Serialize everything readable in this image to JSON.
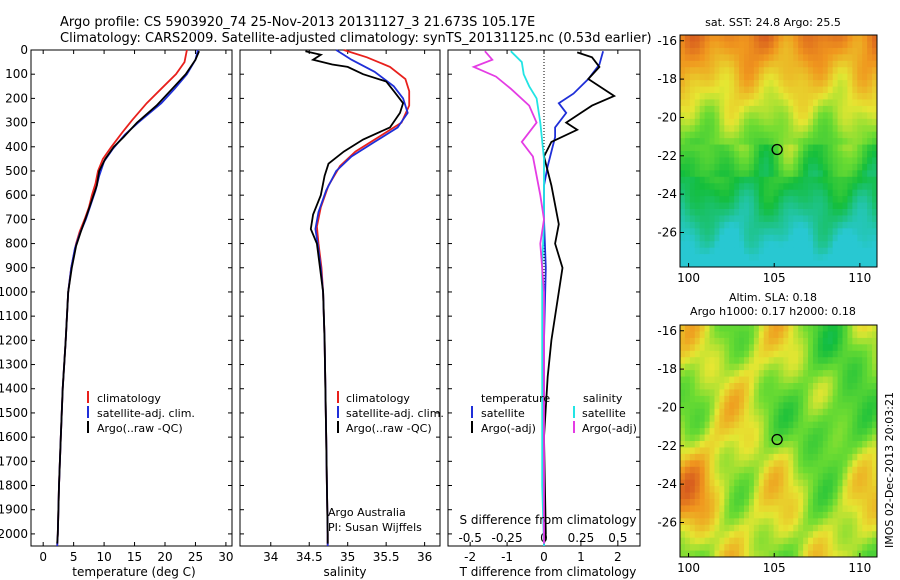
{
  "header": {
    "title_line1": "Argo profile: CS 5903920_74 25-Nov-2013 20131127_3 21.673S 105.17E",
    "title_line2": "Climatology: CARS2009. Satellite-adjusted climatology: synTS_20131125.nc (0.53d earlier)"
  },
  "colors": {
    "climatology": "#e8201c",
    "satellite": "#1f2fd8",
    "argo": "#000000",
    "salinity_satellite": "#22e4e4",
    "salinity_argo": "#e43ce4"
  },
  "chart_data": [
    {
      "type": "line",
      "id": "temperature",
      "xlabel": "temperature (deg C)",
      "xlim": [
        -2,
        31
      ],
      "xticks": [
        0,
        5,
        10,
        15,
        20,
        25,
        30
      ],
      "ylim": [
        0,
        2050
      ],
      "yticks": [
        0,
        100,
        200,
        300,
        400,
        500,
        600,
        700,
        800,
        900,
        1000,
        1100,
        1200,
        1300,
        1400,
        1500,
        1600,
        1700,
        1800,
        1900,
        2000
      ],
      "legend": [
        "climatology",
        "satellite-adj. clim.",
        "Argo(..raw -QC)"
      ],
      "series": [
        {
          "name": "climatology",
          "color_key": "climatology",
          "points": [
            [
              23.6,
              0
            ],
            [
              23.2,
              50
            ],
            [
              21.8,
              100
            ],
            [
              19.4,
              160
            ],
            [
              17.0,
              220
            ],
            [
              14.6,
              290
            ],
            [
              13.0,
              340
            ],
            [
              11.2,
              400
            ],
            [
              9.8,
              450
            ],
            [
              9.0,
              500
            ],
            [
              8.6,
              550
            ],
            [
              8.0,
              600
            ],
            [
              7.5,
              650
            ],
            [
              6.8,
              700
            ],
            [
              6.0,
              750
            ],
            [
              5.4,
              800
            ],
            [
              4.6,
              900
            ],
            [
              4.1,
              1000
            ],
            [
              3.7,
              1200
            ],
            [
              3.2,
              1400
            ],
            [
              2.9,
              1600
            ],
            [
              2.6,
              1800
            ],
            [
              2.4,
              2000
            ],
            [
              2.3,
              2050
            ]
          ]
        },
        {
          "name": "satellite-adj. clim.",
          "color_key": "satellite",
          "points": [
            [
              25.4,
              0
            ],
            [
              25.0,
              40
            ],
            [
              23.6,
              100
            ],
            [
              21.6,
              160
            ],
            [
              19.4,
              220
            ],
            [
              15.6,
              300
            ],
            [
              13.4,
              350
            ],
            [
              11.4,
              410
            ],
            [
              10.0,
              460
            ],
            [
              9.2,
              520
            ],
            [
              8.6,
              580
            ],
            [
              7.8,
              640
            ],
            [
              7.0,
              700
            ],
            [
              6.0,
              760
            ],
            [
              5.2,
              820
            ],
            [
              4.6,
              900
            ],
            [
              4.1,
              1000
            ],
            [
              3.7,
              1200
            ],
            [
              3.2,
              1400
            ],
            [
              2.9,
              1600
            ],
            [
              2.6,
              1800
            ],
            [
              2.4,
              2000
            ],
            [
              2.3,
              2050
            ]
          ]
        },
        {
          "name": "Argo(..raw -QC)",
          "color_key": "argo",
          "points": [
            [
              25.6,
              5
            ],
            [
              25.0,
              40
            ],
            [
              23.4,
              100
            ],
            [
              21.2,
              160
            ],
            [
              18.6,
              230
            ],
            [
              15.4,
              300
            ],
            [
              13.2,
              360
            ],
            [
              11.6,
              400
            ],
            [
              10.2,
              450
            ],
            [
              9.2,
              500
            ],
            [
              8.8,
              560
            ],
            [
              8.0,
              620
            ],
            [
              7.2,
              680
            ],
            [
              6.2,
              750
            ],
            [
              5.4,
              810
            ],
            [
              4.7,
              900
            ],
            [
              4.1,
              1000
            ],
            [
              3.7,
              1200
            ],
            [
              3.2,
              1400
            ],
            [
              2.9,
              1600
            ],
            [
              2.6,
              1800
            ],
            [
              2.4,
              2000
            ],
            [
              2.3,
              2040
            ]
          ]
        }
      ]
    },
    {
      "type": "line",
      "id": "salinity",
      "xlabel": "salinity",
      "xlim": [
        33.6,
        36.2
      ],
      "xticks": [
        34,
        34.5,
        35,
        35.5,
        36
      ],
      "ylim": [
        0,
        2050
      ],
      "legend": [
        "climatology",
        "satellite-adj. clim.",
        "Argo(..raw -QC)"
      ],
      "credit": [
        "Argo Australia",
        "PI: Susan Wijffels"
      ],
      "series": [
        {
          "name": "climatology",
          "color_key": "climatology",
          "points": [
            [
              34.95,
              0
            ],
            [
              35.25,
              30
            ],
            [
              35.55,
              70
            ],
            [
              35.75,
              120
            ],
            [
              35.8,
              170
            ],
            [
              35.8,
              230
            ],
            [
              35.7,
              300
            ],
            [
              35.4,
              360
            ],
            [
              35.1,
              420
            ],
            [
              34.9,
              480
            ],
            [
              34.75,
              560
            ],
            [
              34.65,
              650
            ],
            [
              34.6,
              730
            ],
            [
              34.62,
              800
            ],
            [
              34.66,
              900
            ],
            [
              34.68,
              1000
            ],
            [
              34.7,
              1200
            ],
            [
              34.71,
              1400
            ],
            [
              34.72,
              1600
            ],
            [
              34.73,
              1800
            ],
            [
              34.74,
              2000
            ],
            [
              34.74,
              2050
            ]
          ]
        },
        {
          "name": "satellite-adj. clim.",
          "color_key": "satellite",
          "points": [
            [
              34.85,
              0
            ],
            [
              35.05,
              40
            ],
            [
              35.35,
              90
            ],
            [
              35.6,
              150
            ],
            [
              35.72,
              200
            ],
            [
              35.78,
              260
            ],
            [
              35.65,
              320
            ],
            [
              35.35,
              380
            ],
            [
              35.05,
              440
            ],
            [
              34.85,
              500
            ],
            [
              34.72,
              580
            ],
            [
              34.62,
              670
            ],
            [
              34.58,
              740
            ],
            [
              34.61,
              800
            ],
            [
              34.65,
              900
            ],
            [
              34.68,
              1000
            ],
            [
              34.7,
              1200
            ],
            [
              34.71,
              1400
            ],
            [
              34.72,
              1600
            ],
            [
              34.73,
              1800
            ],
            [
              34.74,
              2000
            ],
            [
              34.74,
              2050
            ]
          ]
        },
        {
          "name": "Argo(..raw -QC)",
          "color_key": "argo",
          "points": [
            [
              34.45,
              5
            ],
            [
              34.65,
              20
            ],
            [
              34.55,
              40
            ],
            [
              34.8,
              60
            ],
            [
              35.0,
              70
            ],
            [
              35.2,
              100
            ],
            [
              35.5,
              130
            ],
            [
              35.6,
              170
            ],
            [
              35.72,
              220
            ],
            [
              35.68,
              260
            ],
            [
              35.55,
              320
            ],
            [
              35.2,
              370
            ],
            [
              34.95,
              420
            ],
            [
              34.75,
              470
            ],
            [
              34.7,
              520
            ],
            [
              34.65,
              600
            ],
            [
              34.55,
              680
            ],
            [
              34.52,
              740
            ],
            [
              34.6,
              800
            ],
            [
              34.64,
              900
            ],
            [
              34.68,
              1000
            ],
            [
              34.7,
              1200
            ],
            [
              34.71,
              1400
            ],
            [
              34.72,
              1600
            ],
            [
              34.73,
              1800
            ],
            [
              34.74,
              2000
            ],
            [
              34.74,
              2040
            ]
          ]
        }
      ]
    },
    {
      "type": "line",
      "id": "difference",
      "xlabel": "T difference from climatology",
      "xlabel_top": "S difference from climatology",
      "xlim": [
        -2.6,
        2.6
      ],
      "xticks": [
        -2,
        -1,
        0,
        1,
        2
      ],
      "xticks_top": [
        -0.5,
        -0.25,
        0,
        0.25,
        0.5
      ],
      "ylim": [
        0,
        2050
      ],
      "legend_temperature_title": "temperature",
      "legend_salinity_title": "salinity",
      "legend_temperature": [
        "satellite",
        "Argo(-adj)"
      ],
      "legend_salinity": [
        "satellite",
        "Argo(-adj)"
      ],
      "series": [
        {
          "name": "temperature satellite",
          "color_key": "satellite",
          "points": [
            [
              1.6,
              5
            ],
            [
              1.5,
              60
            ],
            [
              1.2,
              120
            ],
            [
              0.8,
              180
            ],
            [
              0.4,
              220
            ],
            [
              0.6,
              260
            ],
            [
              0.3,
              320
            ],
            [
              0.3,
              360
            ],
            [
              0.2,
              420
            ],
            [
              0.1,
              480
            ],
            [
              0.0,
              560
            ],
            [
              0.0,
              700
            ],
            [
              0.05,
              900
            ],
            [
              0.0,
              1200
            ],
            [
              0.0,
              1600
            ],
            [
              0.0,
              2000
            ],
            [
              0.0,
              2050
            ]
          ]
        },
        {
          "name": "temperature Argo(-adj)",
          "color_key": "argo",
          "points": [
            [
              0.9,
              10
            ],
            [
              1.3,
              30
            ],
            [
              1.5,
              70
            ],
            [
              1.2,
              120
            ],
            [
              1.9,
              190
            ],
            [
              1.3,
              230
            ],
            [
              1.0,
              260
            ],
            [
              0.6,
              300
            ],
            [
              0.9,
              330
            ],
            [
              0.2,
              380
            ],
            [
              0.0,
              440
            ],
            [
              0.2,
              560
            ],
            [
              0.3,
              640
            ],
            [
              0.4,
              720
            ],
            [
              0.3,
              800
            ],
            [
              0.5,
              900
            ],
            [
              0.4,
              1000
            ],
            [
              0.3,
              1100
            ],
            [
              0.2,
              1200
            ],
            [
              0.1,
              1350
            ],
            [
              0.0,
              1600
            ],
            [
              0.05,
              2000
            ],
            [
              0.0,
              2040
            ]
          ]
        },
        {
          "name": "salinity satellite",
          "color_key": "salinity_satellite",
          "points": [
            [
              -0.9,
              5
            ],
            [
              -0.6,
              50
            ],
            [
              -0.55,
              100
            ],
            [
              -0.4,
              150
            ],
            [
              -0.2,
              200
            ],
            [
              -0.1,
              300
            ],
            [
              0.0,
              450
            ],
            [
              0.0,
              700
            ],
            [
              -0.05,
              900
            ],
            [
              -0.05,
              1200
            ],
            [
              -0.05,
              1500
            ],
            [
              -0.05,
              1800
            ],
            [
              0.0,
              2050
            ]
          ]
        },
        {
          "name": "salinity Argo(-adj)",
          "color_key": "salinity_argo",
          "points": [
            [
              -1.6,
              5
            ],
            [
              -1.4,
              40
            ],
            [
              -1.9,
              70
            ],
            [
              -1.3,
              110
            ],
            [
              -0.9,
              160
            ],
            [
              -0.4,
              230
            ],
            [
              -0.2,
              300
            ],
            [
              -0.6,
              380
            ],
            [
              -0.3,
              440
            ],
            [
              -0.2,
              520
            ],
            [
              -0.1,
              600
            ],
            [
              0.0,
              700
            ],
            [
              -0.1,
              800
            ],
            [
              0.0,
              1000
            ],
            [
              0.0,
              1500
            ],
            [
              0.0,
              2040
            ]
          ]
        }
      ]
    },
    {
      "type": "heatmap",
      "id": "sst",
      "title": "sat. SST: 24.8 Argo: 25.5",
      "xlim": [
        99.5,
        111
      ],
      "xticks": [
        100,
        105,
        110
      ],
      "ylim": [
        -27.8,
        -15.7
      ],
      "yticks": [
        -16,
        -18,
        -20,
        -22,
        -24,
        -26
      ],
      "marker": [
        105.17,
        -21.67
      ]
    },
    {
      "type": "heatmap",
      "id": "sla",
      "title": "Altim. SLA: 0.18",
      "subtitle": "Argo h1000: 0.17 h2000: 0.18",
      "xlim": [
        99.5,
        111
      ],
      "xticks": [
        100,
        105,
        110
      ],
      "ylim": [
        -27.8,
        -15.7
      ],
      "yticks": [
        -16,
        -18,
        -20,
        -22,
        -24,
        -26
      ],
      "marker": [
        105.17,
        -21.67
      ]
    }
  ],
  "footer": {
    "stamp": "IMOS 02-Dec-2013 20:03:21"
  }
}
